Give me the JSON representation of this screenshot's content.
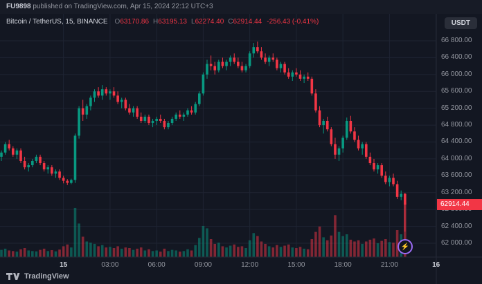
{
  "meta": {
    "username": "FU9898",
    "published_text": " published on TradingView.com, Apr 15, 2024 22:12 UTC+3"
  },
  "header": {
    "symbol_line": "Bitcoin / TetherUS, 15, BINANCE",
    "symbol": "Bitcoin / TetherUS",
    "interval": "15",
    "exchange": "BINANCE",
    "ohlc": [
      {
        "label": "O",
        "value": "63170.86"
      },
      {
        "label": "H",
        "value": "63195.13"
      },
      {
        "label": "L",
        "value": "62274.40"
      },
      {
        "label": "C",
        "value": "62914.44"
      }
    ],
    "change": "-256.43 (-0.41%)"
  },
  "currency_button": "USDT",
  "price_label": "62914.44",
  "watermark": {
    "logo_text": "TradingView"
  },
  "icons": {
    "flash": "⚡",
    "tv_logo": "tradingview-logo"
  },
  "colors": {
    "bg": "#131722",
    "up": "#089981",
    "down": "#f23645",
    "up_volume": "rgba(8,153,129,0.5)",
    "down_volume": "rgba(242,54,69,0.5)",
    "grid": "#1f2433",
    "axis_separator": "#242836",
    "axis_text": "#9598a1",
    "price_label_bg": "#f23645"
  },
  "price_axis": {
    "max_price": 66800,
    "min_price": 62000,
    "step": 400,
    "ticks": [
      "66 800.00",
      "66 400.00",
      "66 000.00",
      "65 600.00",
      "65 200.00",
      "64 800.00",
      "64 400.00",
      "64 000.00",
      "63 600.00",
      "63 200.00",
      "62 800.00",
      "62 400.00",
      "62 000.00"
    ]
  },
  "time_axis": {
    "ticks": [
      {
        "label": "15",
        "index": 16,
        "major": true
      },
      {
        "label": "03:00",
        "index": 28,
        "major": false
      },
      {
        "label": "06:00",
        "index": 40,
        "major": false
      },
      {
        "label": "09:00",
        "index": 52,
        "major": false
      },
      {
        "label": "12:00",
        "index": 64,
        "major": false
      },
      {
        "label": "15:00",
        "index": 76,
        "major": false
      },
      {
        "label": "18:00",
        "index": 88,
        "major": false
      },
      {
        "label": "21:00",
        "index": 100,
        "major": false
      },
      {
        "label": "16",
        "index": 112,
        "major": true
      }
    ]
  },
  "chart_data": {
    "type": "candlestick",
    "title": "Bitcoin / TetherUS, 15, BINANCE",
    "interval_minutes": 15,
    "ylim": [
      61900,
      66950
    ],
    "grid": true,
    "last_price": 62914.44,
    "last_change": -256.43,
    "last_change_pct": -0.41,
    "columns": [
      "time",
      "open",
      "high",
      "low",
      "close",
      "volume"
    ],
    "candles": [
      [
        "04-14 20:00",
        64050,
        64200,
        63950,
        64150,
        120
      ],
      [
        "04-14 20:15",
        64150,
        64400,
        64100,
        64350,
        140
      ],
      [
        "04-14 20:30",
        64350,
        64450,
        64200,
        64250,
        110
      ],
      [
        "04-14 20:45",
        64250,
        64300,
        64050,
        64100,
        100
      ],
      [
        "04-14 21:00",
        64100,
        64250,
        64000,
        64200,
        90
      ],
      [
        "04-14 21:15",
        64200,
        64250,
        63900,
        63950,
        130
      ],
      [
        "04-14 21:30",
        63950,
        64050,
        63750,
        63800,
        150
      ],
      [
        "04-14 21:45",
        63800,
        63900,
        63700,
        63850,
        110
      ],
      [
        "04-14 22:00",
        63850,
        64000,
        63800,
        63950,
        100
      ],
      [
        "04-14 22:15",
        63950,
        64100,
        63900,
        64050,
        95
      ],
      [
        "04-14 22:30",
        64050,
        64100,
        63850,
        63900,
        120
      ],
      [
        "04-14 22:45",
        63900,
        63950,
        63700,
        63750,
        140
      ],
      [
        "04-14 23:00",
        63750,
        63850,
        63650,
        63800,
        100
      ],
      [
        "04-14 23:15",
        63800,
        63850,
        63600,
        63650,
        115
      ],
      [
        "04-14 23:30",
        63650,
        63750,
        63550,
        63700,
        95
      ],
      [
        "04-14 23:45",
        63700,
        63750,
        63500,
        63550,
        125
      ],
      [
        "04-15 00:00",
        63550,
        63600,
        63420,
        63480,
        180
      ],
      [
        "04-15 00:15",
        63480,
        63520,
        63380,
        63430,
        210
      ],
      [
        "04-15 00:30",
        63430,
        63530,
        63400,
        63500,
        160
      ],
      [
        "04-15 00:45",
        63500,
        64600,
        63430,
        64550,
        820
      ],
      [
        "04-15 01:00",
        64550,
        65250,
        64480,
        65200,
        560
      ],
      [
        "04-15 01:15",
        65200,
        65400,
        64900,
        65050,
        340
      ],
      [
        "04-15 01:30",
        65050,
        65300,
        64950,
        65250,
        260
      ],
      [
        "04-15 01:45",
        65250,
        65500,
        65150,
        65450,
        240
      ],
      [
        "04-15 02:00",
        65450,
        65650,
        65350,
        65600,
        220
      ],
      [
        "04-15 02:15",
        65600,
        65700,
        65450,
        65500,
        180
      ],
      [
        "04-15 02:30",
        65500,
        65750,
        65400,
        65650,
        200
      ],
      [
        "04-15 02:45",
        65650,
        65700,
        65500,
        65550,
        160
      ],
      [
        "04-15 03:00",
        65550,
        65650,
        65400,
        65600,
        170
      ],
      [
        "04-15 03:15",
        65600,
        65700,
        65450,
        65500,
        150
      ],
      [
        "04-15 03:30",
        65500,
        65600,
        65300,
        65350,
        180
      ],
      [
        "04-15 03:45",
        65350,
        65450,
        65200,
        65400,
        140
      ],
      [
        "04-15 04:00",
        65400,
        65450,
        65150,
        65200,
        160
      ],
      [
        "04-15 04:15",
        65200,
        65300,
        65050,
        65100,
        150
      ],
      [
        "04-15 04:30",
        65100,
        65250,
        65000,
        65200,
        120
      ],
      [
        "04-15 04:45",
        65200,
        65250,
        64950,
        65000,
        140
      ],
      [
        "04-15 05:00",
        65000,
        65100,
        64850,
        64900,
        160
      ],
      [
        "04-15 05:15",
        64900,
        65050,
        64850,
        65000,
        110
      ],
      [
        "04-15 05:30",
        65000,
        65050,
        64800,
        64850,
        130
      ],
      [
        "04-15 05:45",
        64850,
        64950,
        64750,
        64900,
        100
      ],
      [
        "04-15 06:00",
        64900,
        65000,
        64800,
        64950,
        110
      ],
      [
        "04-15 06:15",
        64950,
        65050,
        64850,
        64900,
        90
      ],
      [
        "04-15 06:30",
        64900,
        64950,
        64700,
        64750,
        140
      ],
      [
        "04-15 06:45",
        64750,
        64900,
        64700,
        64850,
        100
      ],
      [
        "04-15 07:00",
        64850,
        65000,
        64800,
        64950,
        120
      ],
      [
        "04-15 07:15",
        64950,
        65100,
        64900,
        65050,
        110
      ],
      [
        "04-15 07:30",
        65050,
        65150,
        64950,
        65000,
        90
      ],
      [
        "04-15 07:45",
        65000,
        65100,
        64900,
        65050,
        100
      ],
      [
        "04-15 08:00",
        65050,
        65200,
        65000,
        65150,
        130
      ],
      [
        "04-15 08:15",
        65150,
        65250,
        65050,
        65100,
        110
      ],
      [
        "04-15 08:30",
        65100,
        65350,
        65050,
        65300,
        200
      ],
      [
        "04-15 08:45",
        65300,
        65600,
        65250,
        65550,
        320
      ],
      [
        "04-15 09:00",
        65550,
        66050,
        65500,
        66000,
        520
      ],
      [
        "04-15 09:15",
        66000,
        66350,
        65900,
        66250,
        480
      ],
      [
        "04-15 09:30",
        66250,
        66450,
        66100,
        66200,
        300
      ],
      [
        "04-15 09:45",
        66200,
        66300,
        66000,
        66100,
        220
      ],
      [
        "04-15 10:00",
        66100,
        66350,
        66050,
        66300,
        240
      ],
      [
        "04-15 10:15",
        66300,
        66400,
        66150,
        66200,
        180
      ],
      [
        "04-15 10:30",
        66200,
        66350,
        66100,
        66300,
        160
      ],
      [
        "04-15 10:45",
        66300,
        66450,
        66200,
        66400,
        190
      ],
      [
        "04-15 11:00",
        66400,
        66500,
        66250,
        66300,
        210
      ],
      [
        "04-15 11:15",
        66300,
        66400,
        66150,
        66200,
        170
      ],
      [
        "04-15 11:30",
        66200,
        66300,
        66050,
        66100,
        180
      ],
      [
        "04-15 11:45",
        66100,
        66250,
        66050,
        66200,
        150
      ],
      [
        "04-15 12:00",
        66200,
        66550,
        66150,
        66500,
        280
      ],
      [
        "04-15 12:15",
        66500,
        66750,
        66400,
        66650,
        400
      ],
      [
        "04-15 12:30",
        66650,
        66780,
        66500,
        66550,
        350
      ],
      [
        "04-15 12:45",
        66550,
        66650,
        66350,
        66400,
        260
      ],
      [
        "04-15 13:00",
        66400,
        66500,
        66250,
        66300,
        220
      ],
      [
        "04-15 13:15",
        66300,
        66450,
        66200,
        66400,
        180
      ],
      [
        "04-15 13:30",
        66400,
        66500,
        66300,
        66350,
        160
      ],
      [
        "04-15 13:45",
        66350,
        66400,
        66100,
        66150,
        200
      ],
      [
        "04-15 14:00",
        66150,
        66300,
        66050,
        66250,
        170
      ],
      [
        "04-15 14:15",
        66250,
        66300,
        66000,
        66050,
        190
      ],
      [
        "04-15 14:30",
        66050,
        66150,
        65900,
        65950,
        210
      ],
      [
        "04-15 14:45",
        65950,
        66100,
        65850,
        66050,
        160
      ],
      [
        "04-15 15:00",
        66050,
        66150,
        65950,
        66000,
        150
      ],
      [
        "04-15 15:15",
        66000,
        66100,
        65850,
        65900,
        170
      ],
      [
        "04-15 15:30",
        65900,
        66000,
        65800,
        65950,
        140
      ],
      [
        "04-15 15:45",
        65950,
        66050,
        65850,
        65900,
        130
      ],
      [
        "04-15 16:00",
        65900,
        65950,
        65500,
        65550,
        300
      ],
      [
        "04-15 16:15",
        65550,
        65650,
        65100,
        65150,
        420
      ],
      [
        "04-15 16:30",
        65150,
        65250,
        64750,
        64800,
        510
      ],
      [
        "04-15 16:45",
        64800,
        64950,
        64600,
        64900,
        330
      ],
      [
        "04-15 17:00",
        64900,
        65000,
        64650,
        64700,
        280
      ],
      [
        "04-15 17:15",
        64700,
        64750,
        64300,
        64350,
        360
      ],
      [
        "04-15 17:30",
        64350,
        64500,
        64000,
        64100,
        700
      ],
      [
        "04-15 17:45",
        64100,
        64300,
        63950,
        64250,
        420
      ],
      [
        "04-15 18:00",
        64250,
        64550,
        64150,
        64500,
        350
      ],
      [
        "04-15 18:15",
        64500,
        64980,
        64450,
        64900,
        380
      ],
      [
        "04-15 18:30",
        64900,
        65020,
        64600,
        64650,
        290
      ],
      [
        "04-15 18:45",
        64650,
        64750,
        64400,
        64450,
        260
      ],
      [
        "04-15 19:00",
        64450,
        64550,
        64200,
        64250,
        280
      ],
      [
        "04-15 19:15",
        64250,
        64400,
        64100,
        64350,
        220
      ],
      [
        "04-15 19:30",
        64350,
        64400,
        64000,
        64050,
        260
      ],
      [
        "04-15 19:45",
        64050,
        64150,
        63850,
        63900,
        290
      ],
      [
        "04-15 20:00",
        63900,
        64000,
        63700,
        63750,
        310
      ],
      [
        "04-15 20:15",
        63750,
        63900,
        63650,
        63850,
        230
      ],
      [
        "04-15 20:30",
        63850,
        63900,
        63550,
        63600,
        270
      ],
      [
        "04-15 20:45",
        63600,
        63700,
        63400,
        63450,
        300
      ],
      [
        "04-15 21:00",
        63450,
        63600,
        63350,
        63550,
        250
      ],
      [
        "04-15 21:15",
        63550,
        63650,
        63350,
        63400,
        240
      ],
      [
        "04-15 21:30",
        63400,
        63480,
        63050,
        63100,
        450
      ],
      [
        "04-15 21:45",
        63100,
        63250,
        63020,
        63170,
        380
      ],
      [
        "04-15 22:00",
        63170.86,
        63195.13,
        62274.4,
        62914.44,
        900
      ]
    ]
  }
}
